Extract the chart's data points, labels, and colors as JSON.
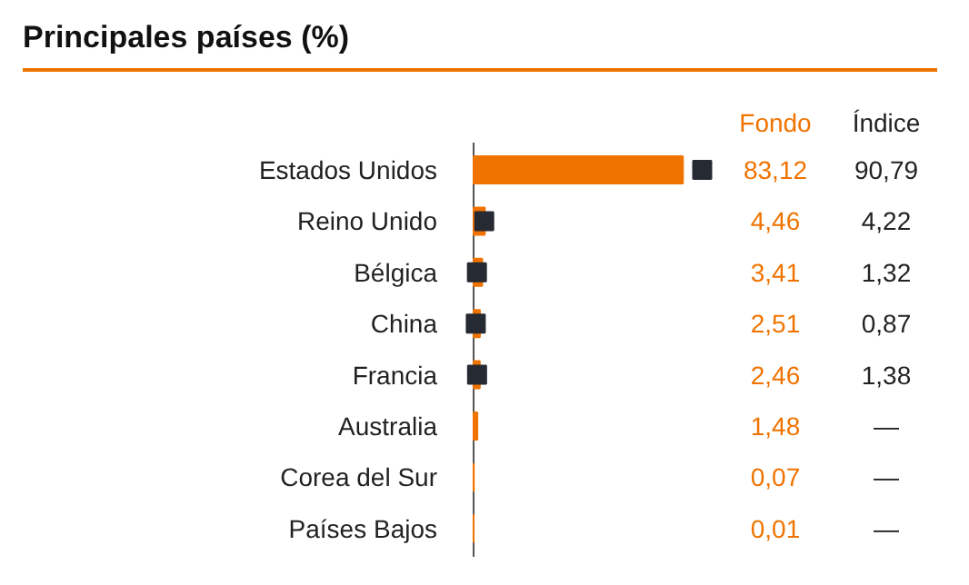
{
  "chart_data": {
    "type": "bar",
    "orientation": "horizontal",
    "title": "Principales países (%)",
    "categories": [
      "Estados Unidos",
      "Reino Unido",
      "Bélgica",
      "China",
      "Francia",
      "Australia",
      "Corea del Sur",
      "Países Bajos"
    ],
    "marker": "square",
    "grid": false,
    "series": [
      {
        "name": "Fondo",
        "color": "#f07300",
        "values": [
          83.12,
          4.46,
          3.41,
          2.51,
          2.46,
          1.48,
          0.07,
          0.01
        ],
        "value_labels": [
          "83,12",
          "4,46",
          "3,41",
          "2,51",
          "2,46",
          "1,48",
          "0,07",
          "0,01"
        ]
      },
      {
        "name": "Índice",
        "type": "scatter",
        "color": "#262a33",
        "values": [
          90.79,
          4.22,
          1.32,
          0.87,
          1.38,
          null,
          null,
          null
        ],
        "value_labels": [
          "90,79",
          "4,22",
          "1,32",
          "0,87",
          "1,38",
          "—",
          "—",
          "—"
        ]
      }
    ]
  }
}
